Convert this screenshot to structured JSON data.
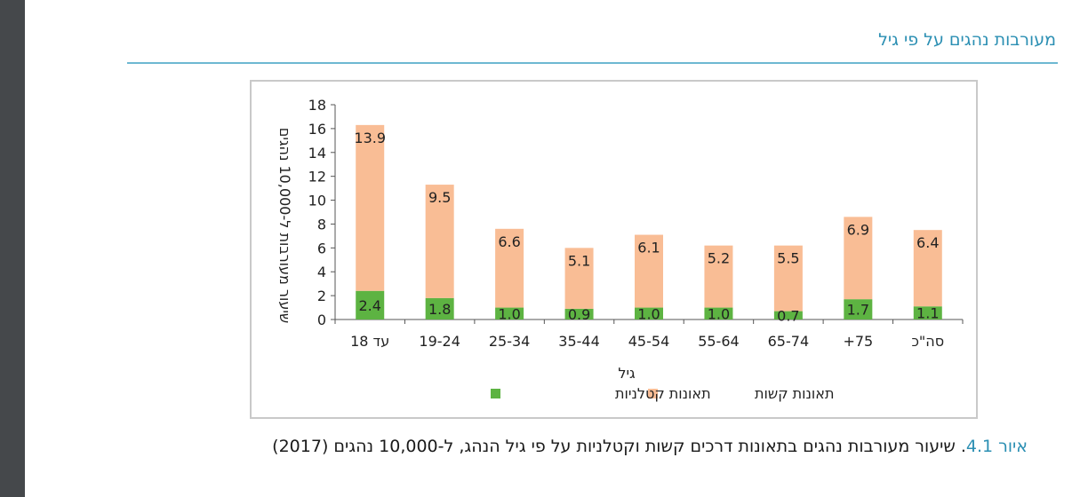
{
  "page": {
    "section_title": "מעורבות נהגים על פי גיל",
    "caption_label": "איור 4.1",
    "caption_text": ". שיעור מעורבות נהגים בתאונות דרכים קשות וקטלניות על פי גיל הנהג, ל-10,000 נהגים (2017)"
  },
  "colors": {
    "serious": "#f9bd95",
    "fatal": "#5db342",
    "accent": "#2b8fb3"
  },
  "chart_data": {
    "type": "bar",
    "stacked": true,
    "title": "",
    "xlabel": "גיל",
    "ylabel": "שיעור מעורבות ל-10,000 נהגים",
    "ylim": [
      0,
      18
    ],
    "yticks": [
      0,
      2,
      4,
      6,
      8,
      10,
      12,
      14,
      16,
      18
    ],
    "categories": [
      "עד 18",
      "19-24",
      "25-34",
      "35-44",
      "45-54",
      "55-64",
      "65-74",
      "75+",
      "סה\"כ"
    ],
    "series": [
      {
        "name": "תאונות קטלניות",
        "values": [
          2.4,
          1.8,
          1.0,
          0.9,
          1.0,
          1.0,
          0.7,
          1.7,
          1.1
        ]
      },
      {
        "name": "תאונות קשות",
        "values": [
          13.9,
          9.5,
          6.6,
          5.1,
          6.1,
          5.2,
          5.5,
          6.9,
          6.4
        ]
      }
    ],
    "legend_position": "bottom"
  }
}
